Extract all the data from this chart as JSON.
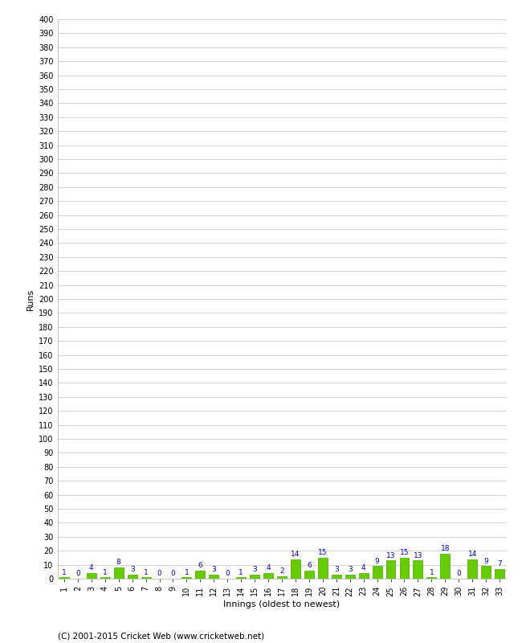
{
  "values": [
    1,
    0,
    4,
    1,
    8,
    3,
    1,
    0,
    0,
    1,
    6,
    3,
    0,
    1,
    3,
    4,
    2,
    14,
    6,
    15,
    3,
    3,
    4,
    9,
    13,
    15,
    13,
    1,
    18,
    0,
    14,
    9,
    7
  ],
  "innings": [
    1,
    2,
    3,
    4,
    5,
    6,
    7,
    8,
    9,
    10,
    11,
    12,
    13,
    14,
    15,
    16,
    17,
    18,
    19,
    20,
    21,
    22,
    23,
    24,
    25,
    26,
    27,
    28,
    29,
    30,
    31,
    32,
    33
  ],
  "bar_color": "#66cc00",
  "bar_edge_color": "#44aa00",
  "ylabel": "Runs",
  "xlabel": "Innings (oldest to newest)",
  "ylim": [
    0,
    400
  ],
  "ytick_step": 10,
  "annotation_color": "#0000cc",
  "annotation_fontsize": 6.5,
  "axis_label_fontsize": 8,
  "tick_fontsize": 7,
  "background_color": "#ffffff",
  "grid_color": "#cccccc",
  "footer_text": "(C) 2001-2015 Cricket Web (www.cricketweb.net)",
  "footer_fontsize": 7.5
}
